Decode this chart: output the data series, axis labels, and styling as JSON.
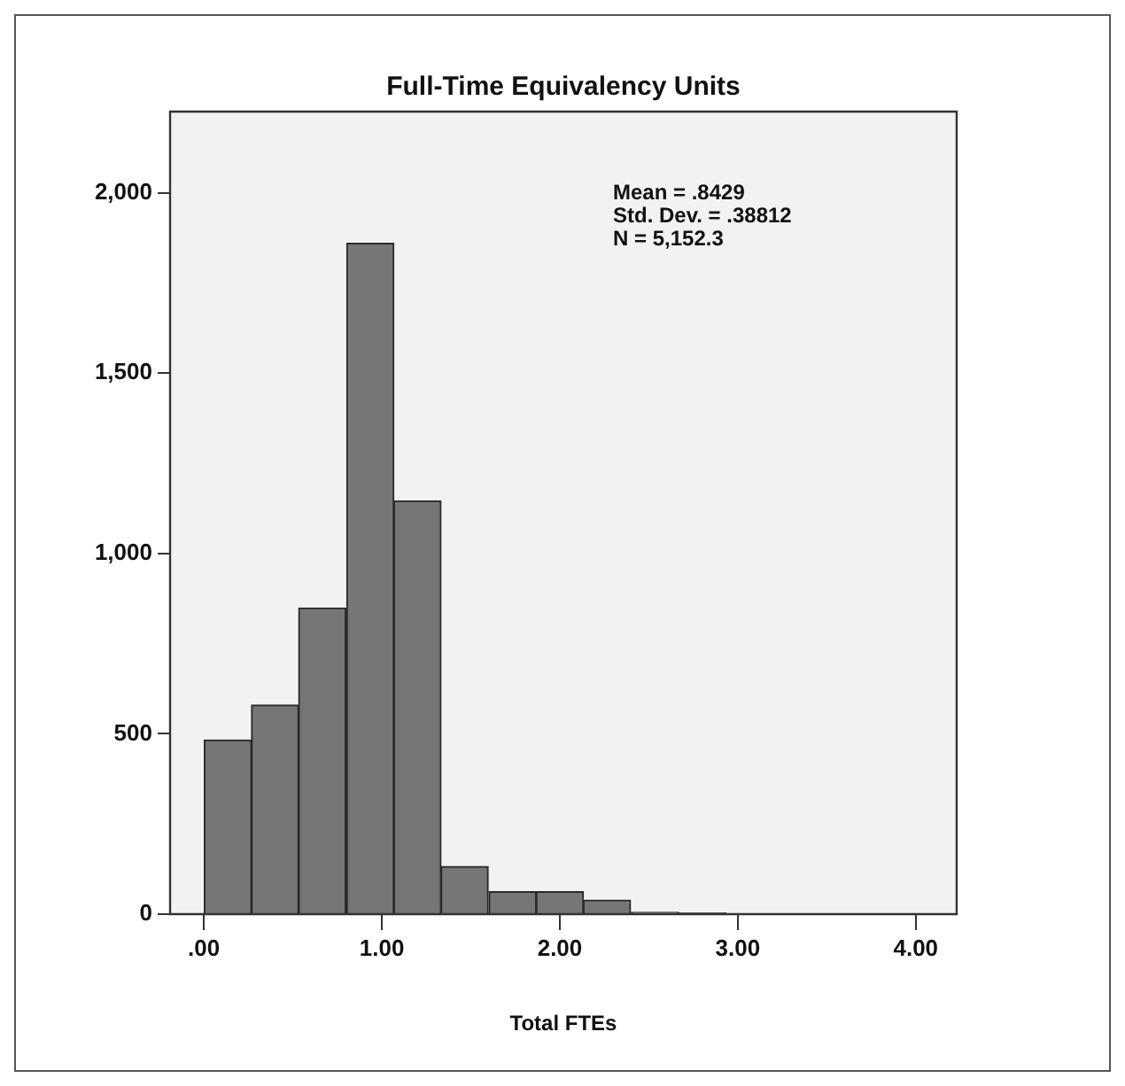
{
  "chart_data": {
    "type": "histogram",
    "title": "Full-Time Equivalency Units",
    "xlabel": "Total FTEs",
    "bins": [
      0,
      0.27,
      0.53,
      0.8,
      1.07,
      1.33,
      1.6,
      1.87,
      2.13,
      2.4,
      2.67,
      2.93,
      3.2,
      3.47,
      3.73,
      4.0
    ],
    "values": [
      483,
      580,
      849,
      1860,
      1146,
      132,
      62,
      62,
      39,
      5,
      3,
      2,
      2,
      1,
      1
    ],
    "color": "#767676",
    "xlim": [
      -0.19,
      4.23
    ],
    "ylim": [
      0,
      2225
    ],
    "xticks": [
      {
        "value": 0,
        "label": ".00"
      },
      {
        "value": 1,
        "label": "1.00"
      },
      {
        "value": 2,
        "label": "2.00"
      },
      {
        "value": 3,
        "label": "3.00"
      },
      {
        "value": 4,
        "label": "4.00"
      }
    ],
    "yticks": [
      {
        "value": 0,
        "label": "0"
      },
      {
        "value": 500,
        "label": "500"
      },
      {
        "value": 1000,
        "label": "1,000"
      },
      {
        "value": 1500,
        "label": "1,500"
      },
      {
        "value": 2000,
        "label": "2,000"
      }
    ],
    "annotations": [
      "Mean = .8429",
      "Std. Dev. = .38812",
      "N = 5,152.3"
    ],
    "grid": false,
    "legend": false
  }
}
